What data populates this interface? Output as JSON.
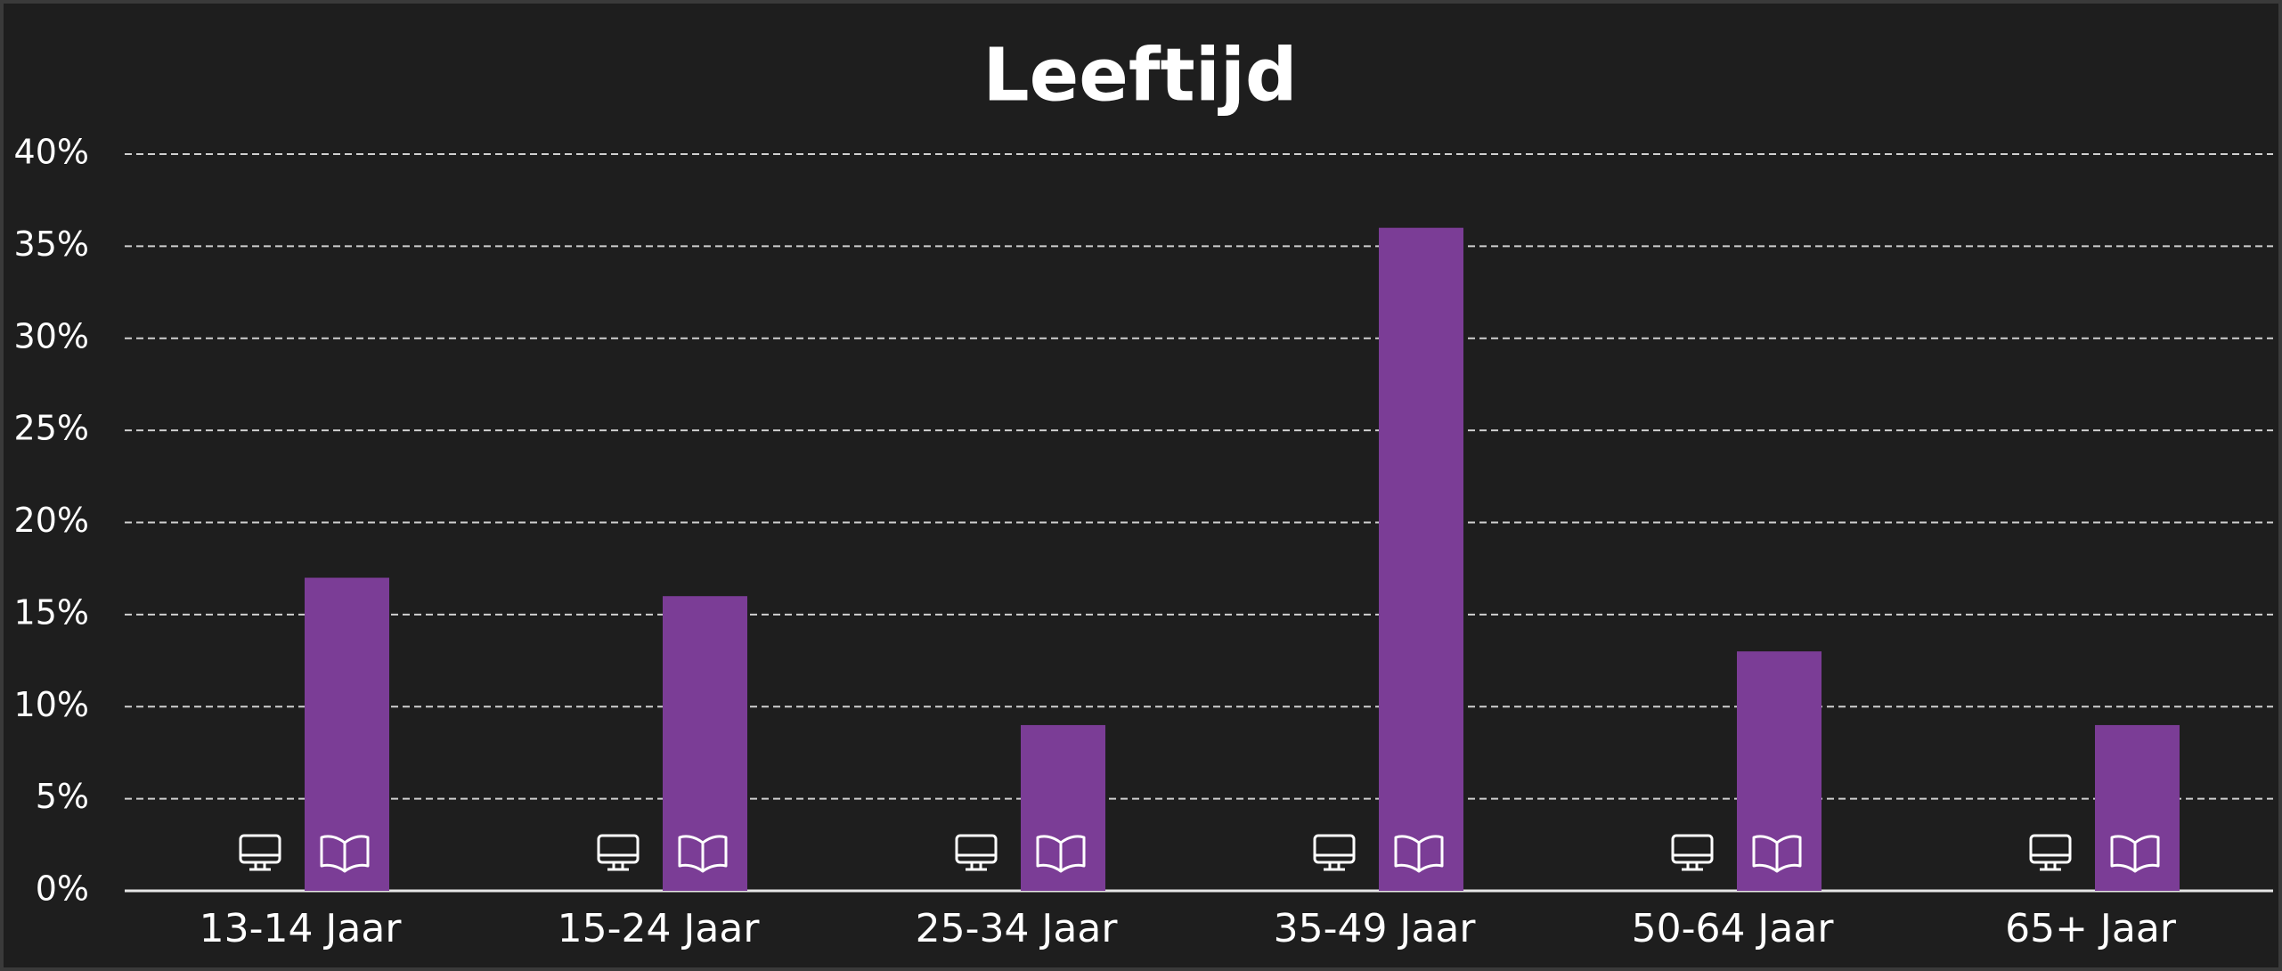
{
  "chart_data": {
    "type": "bar",
    "title": "Leeftijd",
    "categories": [
      "13-14 Jaar",
      "15-24 Jaar",
      "25-34 Jaar",
      "35-49 Jaar",
      "50-64 Jaar",
      "65+ Jaar"
    ],
    "values": [
      17,
      16,
      9,
      36,
      13,
      9
    ],
    "color": "#7b3d96",
    "ylim": [
      0,
      40
    ],
    "yticks": [
      {
        "value": 0,
        "label": "0%"
      },
      {
        "value": 5,
        "label": "5%"
      },
      {
        "value": 10,
        "label": "10%"
      },
      {
        "value": 15,
        "label": "15%"
      },
      {
        "value": 20,
        "label": "20%"
      },
      {
        "value": 25,
        "label": "25%"
      },
      {
        "value": 30,
        "label": "30%"
      },
      {
        "value": 35,
        "label": "35%"
      },
      {
        "value": 40,
        "label": "40%"
      }
    ],
    "grid": true
  }
}
